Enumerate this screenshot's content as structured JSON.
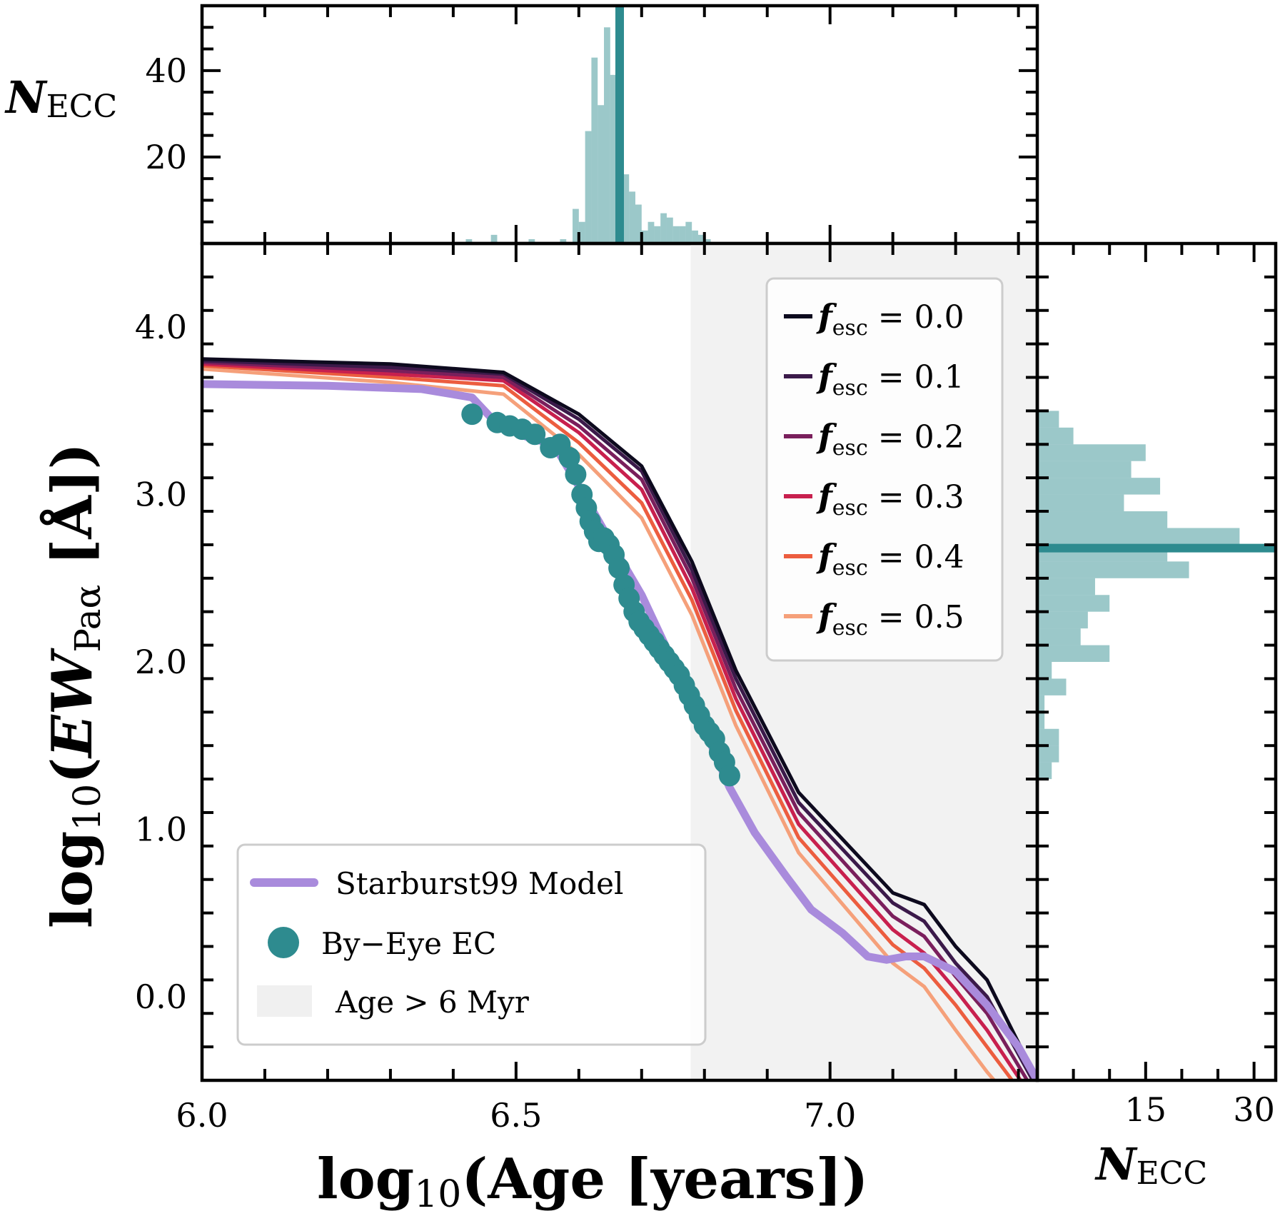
{
  "chart_data": {
    "type": "line",
    "main": {
      "xlim": [
        6.0,
        7.33
      ],
      "ylim": [
        -0.5,
        4.5
      ],
      "xticks": [
        "6.0",
        "6.5",
        "7.0"
      ],
      "yticks": [
        "0.0",
        "1.0",
        "2.0",
        "3.0",
        "4.0"
      ],
      "xtick_values": [
        6.0,
        6.5,
        7.0
      ],
      "ytick_values": [
        0.0,
        1.0,
        2.0,
        3.0,
        4.0
      ],
      "xlabel_main": "log",
      "xlabel_sub": "10",
      "xlabel_rest": "(Age [years])",
      "ylabel_main": "log",
      "ylabel_sub": "10",
      "ylabel_ew": "EW",
      "ylabel_ew_sub": "Paα",
      "ylabel_rest": " [Å])",
      "shaded_region": {
        "x_from": 6.778,
        "x_to": 7.33,
        "label": "Age > 6 Myr",
        "color": "#f2f2f2"
      },
      "fesc_series": [
        {
          "name": "f_esc = 0.0",
          "label_f": "f",
          "label_sub": "esc",
          "label_val": "= 0.0",
          "color": "#0d0a1e",
          "x": [
            6.0,
            6.3,
            6.48,
            6.6,
            6.7,
            6.78,
            6.85,
            6.95,
            7.1,
            7.15,
            7.2,
            7.25,
            7.33
          ],
          "y": [
            3.81,
            3.78,
            3.73,
            3.48,
            3.17,
            2.6,
            1.95,
            1.22,
            0.62,
            0.55,
            0.3,
            0.1,
            -0.5
          ]
        },
        {
          "name": "f_esc = 0.1",
          "label_f": "f",
          "label_sub": "esc",
          "label_val": "= 0.1",
          "color": "#3b1a4a",
          "x": [
            6.0,
            6.3,
            6.48,
            6.6,
            6.7,
            6.78,
            6.85,
            6.95,
            7.1,
            7.15,
            7.2,
            7.25,
            7.33
          ],
          "y": [
            3.8,
            3.76,
            3.72,
            3.45,
            3.14,
            2.55,
            1.9,
            1.16,
            0.56,
            0.45,
            0.2,
            0.0,
            -0.55
          ]
        },
        {
          "name": "f_esc = 0.2",
          "label_f": "f",
          "label_sub": "esc",
          "label_val": "= 0.2",
          "color": "#7a1f5c",
          "x": [
            6.0,
            6.3,
            6.48,
            6.6,
            6.7,
            6.78,
            6.85,
            6.95,
            7.1,
            7.15,
            7.2,
            7.25,
            7.33
          ],
          "y": [
            3.79,
            3.74,
            3.7,
            3.41,
            3.09,
            2.5,
            1.84,
            1.1,
            0.48,
            0.36,
            0.12,
            -0.1,
            -0.6
          ]
        },
        {
          "name": "f_esc = 0.3",
          "label_f": "f",
          "label_sub": "esc",
          "label_val": "= 0.3",
          "color": "#c8204e",
          "x": [
            6.0,
            6.3,
            6.48,
            6.6,
            6.7,
            6.78,
            6.85,
            6.95,
            7.1,
            7.15,
            7.2,
            7.25,
            7.33
          ],
          "y": [
            3.78,
            3.72,
            3.68,
            3.37,
            3.03,
            2.44,
            1.78,
            1.03,
            0.4,
            0.26,
            0.04,
            -0.2,
            -0.65
          ]
        },
        {
          "name": "f_esc = 0.4",
          "label_f": "f",
          "label_sub": "esc",
          "label_val": "= 0.4",
          "color": "#ec5d3f",
          "x": [
            6.0,
            6.3,
            6.48,
            6.6,
            6.7,
            6.78,
            6.85,
            6.95,
            7.1,
            7.15,
            7.2,
            7.25,
            7.33
          ],
          "y": [
            3.77,
            3.7,
            3.65,
            3.31,
            2.95,
            2.37,
            1.71,
            0.95,
            0.31,
            0.17,
            -0.05,
            -0.3,
            -0.7
          ]
        },
        {
          "name": "f_esc = 0.5",
          "label_f": "f",
          "label_sub": "esc",
          "label_val": "= 0.5",
          "color": "#f5a07a",
          "x": [
            6.0,
            6.3,
            6.48,
            6.6,
            6.7,
            6.78,
            6.85,
            6.95,
            7.1,
            7.15,
            7.2,
            7.25,
            7.33
          ],
          "y": [
            3.75,
            3.67,
            3.6,
            3.24,
            2.86,
            2.28,
            1.62,
            0.86,
            0.2,
            0.06,
            -0.2,
            -0.45,
            -0.8
          ]
        }
      ],
      "starburst99": {
        "name": "Starburst99 Model",
        "color": "#a98bdc",
        "x": [
          6.0,
          6.2,
          6.35,
          6.43,
          6.47,
          6.52,
          6.56,
          6.6,
          6.65,
          6.7,
          6.75,
          6.8,
          6.84,
          6.88,
          6.93,
          6.97,
          7.02,
          7.06,
          7.09,
          7.12,
          7.15,
          7.2,
          7.25,
          7.3,
          7.33
        ],
        "y": [
          3.66,
          3.65,
          3.63,
          3.58,
          3.42,
          3.34,
          3.3,
          3.05,
          2.72,
          2.4,
          2.0,
          1.6,
          1.25,
          0.98,
          0.72,
          0.52,
          0.38,
          0.24,
          0.22,
          0.24,
          0.24,
          0.15,
          -0.05,
          -0.3,
          -0.5
        ]
      },
      "by_eye": {
        "name": "By−Eye EC",
        "color": "#2e8b8f",
        "x": [
          6.43,
          6.47,
          6.49,
          6.51,
          6.53,
          6.555,
          6.57,
          6.585,
          6.595,
          6.605,
          6.612,
          6.618,
          6.625,
          6.632,
          6.64,
          6.648,
          6.656,
          6.664,
          6.672,
          6.68,
          6.688,
          6.696,
          6.704,
          6.712,
          6.72,
          6.728,
          6.736,
          6.744,
          6.752,
          6.76,
          6.768,
          6.776,
          6.784,
          6.792,
          6.8,
          6.808,
          6.816,
          6.824,
          6.832,
          6.84
        ],
        "y": [
          3.48,
          3.43,
          3.41,
          3.39,
          3.36,
          3.28,
          3.3,
          3.22,
          3.12,
          3.0,
          2.92,
          2.84,
          2.78,
          2.72,
          2.74,
          2.7,
          2.64,
          2.56,
          2.46,
          2.38,
          2.3,
          2.24,
          2.2,
          2.16,
          2.12,
          2.08,
          2.04,
          2.0,
          1.96,
          1.92,
          1.86,
          1.8,
          1.74,
          1.68,
          1.62,
          1.58,
          1.54,
          1.46,
          1.4,
          1.32
        ]
      },
      "legend_lower": {
        "starburst": "Starburst99 Model",
        "byeye": "By−Eye EC",
        "age": "Age > 6 Myr"
      }
    },
    "top_hist": {
      "type": "bar",
      "ylabel_main": "N",
      "ylabel_sub": "ECC",
      "ylim": [
        0,
        55
      ],
      "yticks": [
        "20",
        "40"
      ],
      "ytick_values": [
        20,
        40
      ],
      "bin_left": [
        6.42,
        6.44,
        6.46,
        6.5,
        6.52,
        6.55,
        6.57,
        6.59,
        6.6,
        6.61,
        6.62,
        6.63,
        6.64,
        6.65,
        6.66,
        6.67,
        6.68,
        6.69,
        6.7,
        6.71,
        6.72,
        6.73,
        6.74,
        6.75,
        6.76,
        6.77,
        6.78,
        6.79,
        6.8
      ],
      "counts": [
        1,
        0,
        2,
        0,
        1,
        0,
        1,
        8,
        5,
        26,
        43,
        32,
        50,
        39,
        30,
        16,
        12,
        9,
        3,
        5,
        4,
        7,
        6,
        4,
        4,
        5,
        3,
        2,
        1
      ],
      "bin_width": 0.01,
      "median": 6.665,
      "color": "#2e8b8f"
    },
    "right_hist": {
      "type": "barh",
      "xlabel_main": "N",
      "xlabel_sub": "ECC",
      "xlim": [
        0,
        33
      ],
      "xticks": [
        "15",
        "30"
      ],
      "xtick_values": [
        15,
        30
      ],
      "bin_bottom": [
        1.3,
        1.4,
        1.5,
        1.6,
        1.7,
        1.8,
        1.9,
        2.0,
        2.1,
        2.2,
        2.3,
        2.4,
        2.5,
        2.6,
        2.7,
        2.8,
        2.9,
        3.0,
        3.1,
        3.2,
        3.3,
        3.4
      ],
      "counts": [
        2,
        3,
        3,
        1,
        1,
        4,
        2,
        10,
        6,
        7,
        10,
        8,
        21,
        18,
        28,
        18,
        12,
        17,
        13,
        15,
        5,
        3
      ],
      "bin_height": 0.1,
      "median": 2.68,
      "color": "#2e8b8f"
    }
  }
}
